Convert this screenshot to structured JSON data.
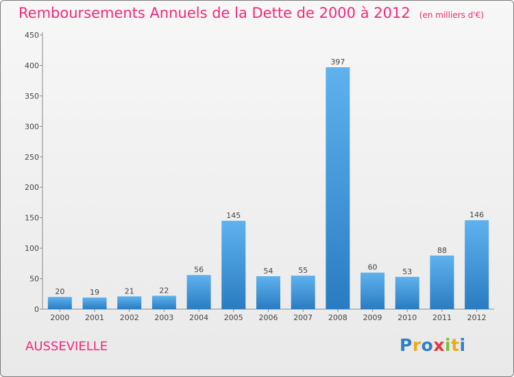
{
  "chart_data": {
    "type": "bar",
    "title": "Remboursements Annuels de la Dette de 2000 à 2012",
    "subtitle": "(en milliers d'€)",
    "categories": [
      "2000",
      "2001",
      "2002",
      "2003",
      "2004",
      "2005",
      "2006",
      "2007",
      "2008",
      "2009",
      "2010",
      "2011",
      "2012"
    ],
    "values": [
      20,
      19,
      21,
      22,
      56,
      145,
      54,
      55,
      397,
      60,
      53,
      88,
      146
    ],
    "ylim": [
      0,
      450
    ],
    "yticks": [
      0,
      50,
      100,
      150,
      200,
      250,
      300,
      350,
      400,
      450
    ],
    "grid": false,
    "legend": "none",
    "bar_color": "#3f9be0"
  },
  "commune": "AUSSEVIELLE",
  "logo": {
    "letters": [
      "P",
      "r",
      "o",
      "x",
      "i",
      "t",
      "i"
    ],
    "colors": [
      "#2f7fc6",
      "#f2a71c",
      "#2f7fc6",
      "#e8333c",
      "#7dbf3a",
      "#f2a71c",
      "#2f7fc6"
    ]
  }
}
